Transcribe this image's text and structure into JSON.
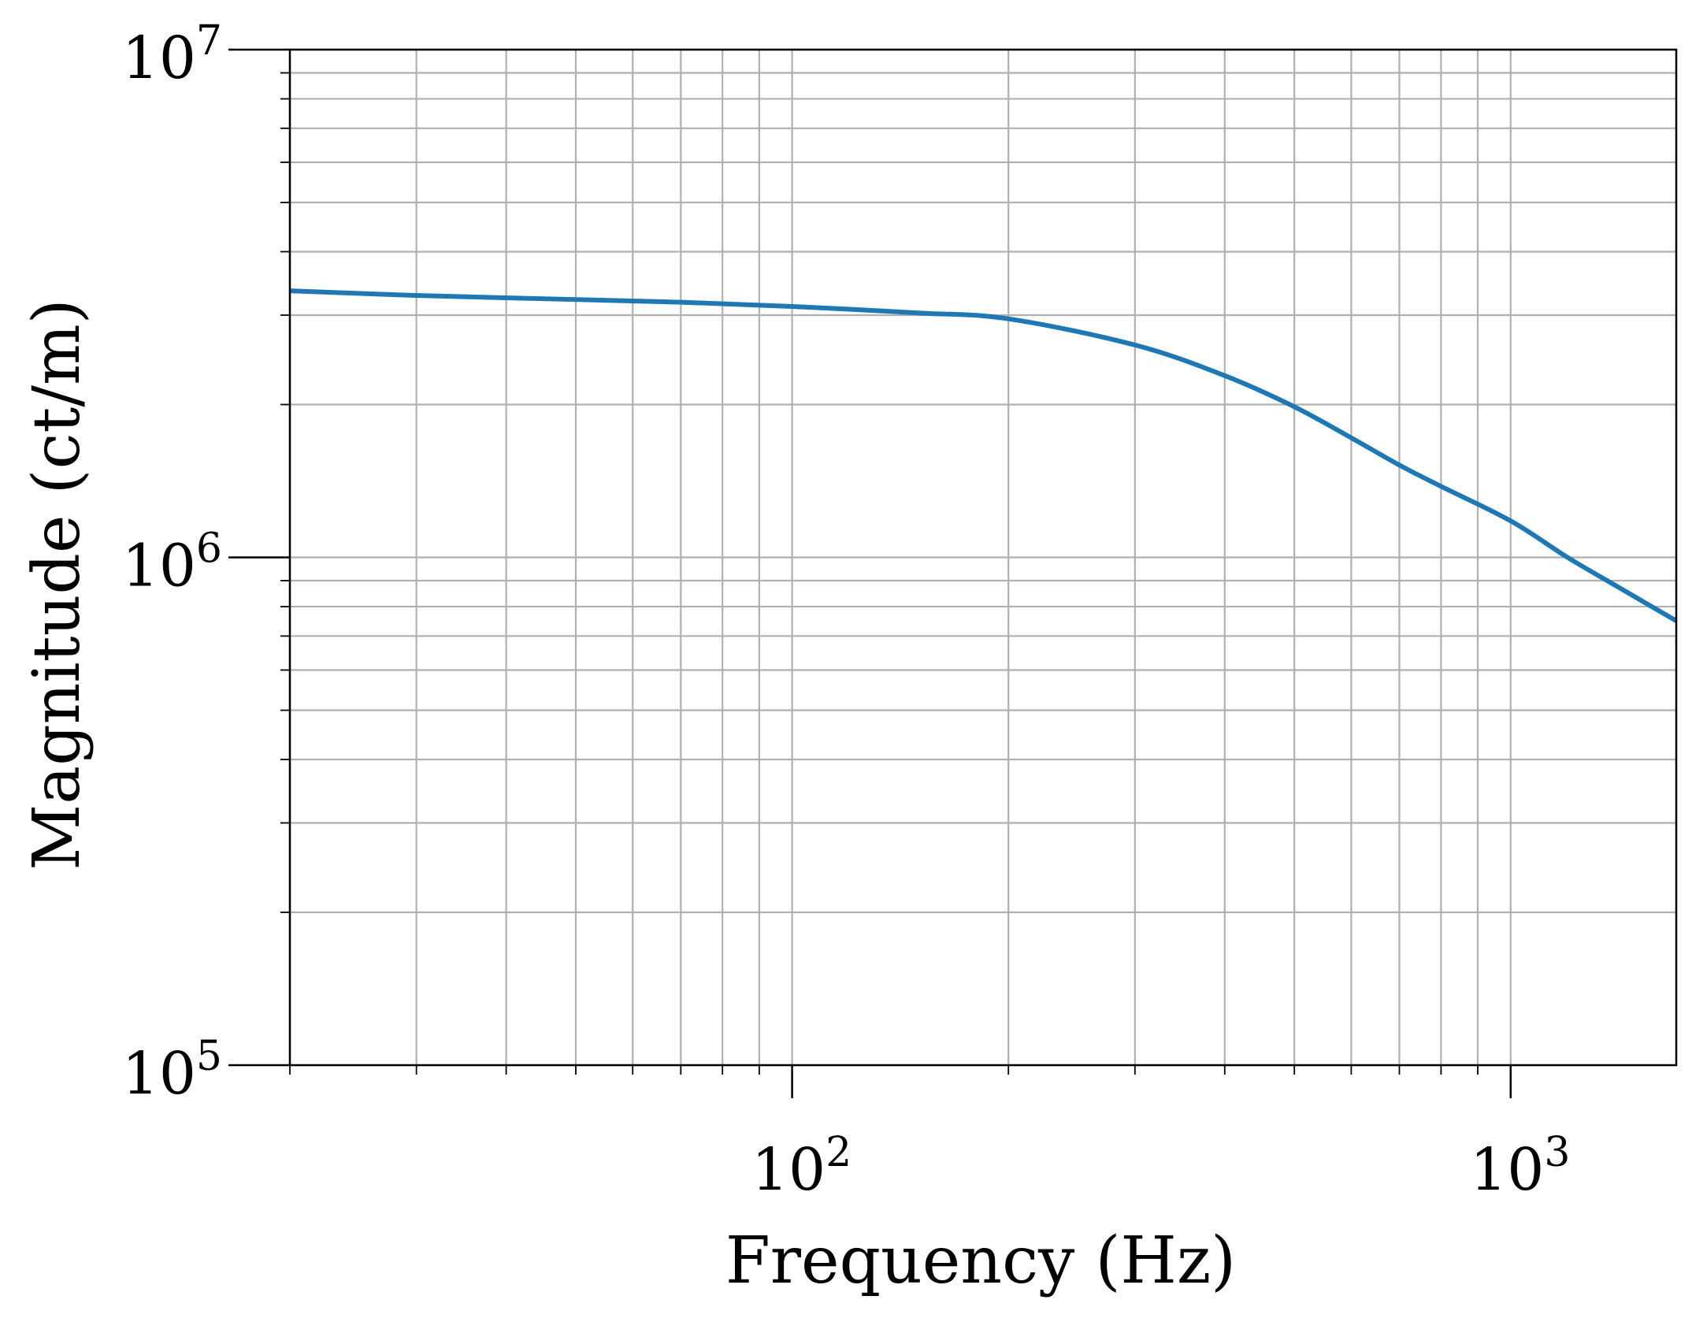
{
  "chart_data": {
    "type": "line",
    "xlabel": "Frequency (Hz)",
    "ylabel": "Magnitude (ct/m)",
    "x_scale": "log",
    "y_scale": "log",
    "xlim": [
      20,
      1700
    ],
    "ylim": [
      100000,
      10000000
    ],
    "grid": true,
    "x_ticks": [
      {
        "value": 100,
        "base": "10",
        "exp": "2"
      },
      {
        "value": 1000,
        "base": "10",
        "exp": "3"
      }
    ],
    "y_ticks": [
      {
        "value": 100000,
        "base": "10",
        "exp": "5"
      },
      {
        "value": 1000000,
        "base": "10",
        "exp": "6"
      },
      {
        "value": 10000000,
        "base": "10",
        "exp": "7"
      }
    ],
    "series": [
      {
        "color": "#1f77b4",
        "x": [
          20,
          30,
          50,
          70,
          100,
          150,
          200,
          300,
          400,
          500,
          600,
          700,
          800,
          1000,
          1200,
          1400,
          1700
        ],
        "y": [
          3350000,
          3280000,
          3220000,
          3180000,
          3120000,
          3030000,
          2950000,
          2620000,
          2280000,
          1980000,
          1720000,
          1520000,
          1380000,
          1180000,
          1000000,
          880000,
          750000
        ]
      }
    ]
  }
}
